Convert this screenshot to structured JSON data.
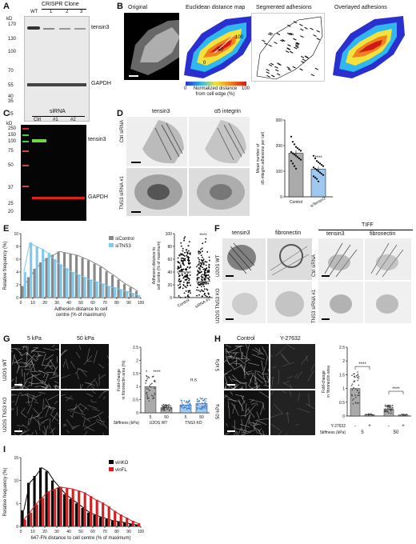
{
  "panels": {
    "A": {
      "label": "A",
      "kd": "kD",
      "header": "CRISPR Clone",
      "lanes": [
        "WT",
        "1",
        "2",
        "3"
      ],
      "markers": [
        "170",
        "130",
        "100",
        "70",
        "55",
        "40",
        "35",
        "25"
      ],
      "bands": [
        "tensin3",
        "GAPDH"
      ]
    },
    "B": {
      "label": "B",
      "titles": [
        "Original",
        "Euclidean distance map",
        "Segmented adhesions",
        "Overlayed adhesions"
      ],
      "contour_labels": [
        "100",
        "50",
        "0"
      ],
      "colorbar_ticks": [
        "0",
        "100"
      ],
      "colorbar_label": "Normalized distance\nfrom cell edge (%)"
    },
    "C": {
      "label": "C",
      "kd": "kD",
      "header": "siRNA",
      "lanes": [
        "Ctrl",
        "#1",
        "#2"
      ],
      "markers": [
        "250",
        "150",
        "100",
        "75",
        "50",
        "37",
        "25",
        "20"
      ],
      "bands": [
        "tensin3",
        "GAPDH"
      ]
    },
    "D": {
      "label": "D",
      "col_titles": [
        "tensin3",
        "α5 integrin"
      ],
      "row_labels": [
        "Ctrl siRNA",
        "TNS3 siRNA #1"
      ],
      "significance": "****"
    },
    "E": {
      "label": "E",
      "significance": "****"
    },
    "F": {
      "label": "F",
      "col_titles": [
        "tensin3",
        "fibronectin",
        "tensin3",
        "fibronectin"
      ],
      "group_title": "TIFF",
      "row_labels": [
        "U2OS WT",
        "U2OS TNS3 KO",
        "Ctrl siRNA",
        "TNS3 siRNA #1"
      ]
    },
    "G": {
      "label": "G",
      "col_titles": [
        "5 kPa",
        "50 kPa"
      ],
      "row_labels": [
        "U2OS WT",
        "U2OS TNS3 KO"
      ],
      "significance": [
        "****",
        "n.s"
      ],
      "stiffness_label": "Stiffness (kPa)"
    },
    "H": {
      "label": "H",
      "col_titles": [
        "Control",
        "Y-27632"
      ],
      "row_labels": [
        "5 kPa",
        "50 kPa"
      ],
      "significance": [
        "****",
        "****"
      ],
      "drug_label": "Y-27632",
      "stiffness_label": "Stiffness (kPa)"
    },
    "I": {
      "label": "I"
    }
  },
  "chart_data": [
    {
      "id": "D-bar",
      "type": "bar",
      "categories": [
        "Control",
        "siTensin3"
      ],
      "values": [
        170,
        108
      ],
      "errors": [
        12,
        9
      ],
      "ylabel": "Mean number of\nα5-integrin adhesions per cell",
      "ylim": [
        0,
        300
      ],
      "yticks": [
        0,
        100,
        200,
        300
      ],
      "points": [
        [
          235,
          215,
          205,
          195,
          190,
          185,
          180,
          175,
          170,
          165,
          160,
          155,
          150,
          145,
          140,
          130,
          120,
          110
        ],
        [
          160,
          150,
          140,
          135,
          130,
          125,
          120,
          115,
          110,
          105,
          100,
          95,
          90,
          85,
          80,
          75,
          70,
          60
        ]
      ],
      "significance": "****"
    },
    {
      "id": "E-hist",
      "type": "bar",
      "xlabel": "Adhesion distance to cell\ncentre (% of maximum)",
      "ylabel": "Relative frequency (%)",
      "xlim": [
        0,
        100
      ],
      "ylim": [
        0,
        10
      ],
      "xticks": [
        0,
        10,
        20,
        30,
        40,
        50,
        60,
        70,
        80,
        90,
        100
      ],
      "yticks": [
        0,
        2,
        4,
        6,
        8,
        10
      ],
      "x": [
        2.5,
        7.5,
        12.5,
        17.5,
        22.5,
        27.5,
        32.5,
        37.5,
        42.5,
        47.5,
        52.5,
        57.5,
        62.5,
        67.5,
        72.5,
        77.5,
        82.5,
        87.5,
        92.5,
        97.5
      ],
      "series": [
        {
          "name": "siControl",
          "color": "#888888",
          "values": [
            1.8,
            3.2,
            4.5,
            5.5,
            6.2,
            6.7,
            7.2,
            7.0,
            6.8,
            6.6,
            6.2,
            5.8,
            5.3,
            4.8,
            4.1,
            3.5,
            2.8,
            2.1,
            1.6,
            1.0
          ]
        },
        {
          "name": "siTNS3",
          "color": "#7fc8f0",
          "values": [
            4.0,
            8.6,
            8.0,
            7.6,
            7.0,
            6.0,
            5.2,
            4.6,
            4.0,
            3.6,
            3.2,
            2.8,
            2.5,
            2.2,
            1.8,
            1.6,
            1.3,
            1.0,
            0.7,
            0.4
          ]
        }
      ],
      "legend": "top-right"
    },
    {
      "id": "E-scatter",
      "type": "scatter",
      "categories": [
        "Control",
        "siRNA #1"
      ],
      "ylabel": "Adhesion distance to\ncell centre (% of maximum)",
      "ylim": [
        0,
        100
      ],
      "yticks": [
        0,
        20,
        40,
        60,
        80,
        100
      ],
      "medians": [
        40,
        25
      ],
      "significance": "****"
    },
    {
      "id": "G-bar",
      "type": "bar",
      "groups": [
        "U2OS WT",
        "TNS3 KO"
      ],
      "categories": [
        "5",
        "50",
        "5",
        "50"
      ],
      "values": [
        1.0,
        0.2,
        0.3,
        0.35
      ],
      "errors": [
        0.06,
        0.03,
        0.04,
        0.04
      ],
      "colors": [
        "#aaaaaa",
        "#aaaaaa",
        "#9ec8ef",
        "#9ec8ef"
      ],
      "ylabel": "Fold-change\nin fibronectin area (%)",
      "ylim": [
        0,
        2.5
      ],
      "yticks": [
        0,
        0.5,
        1,
        1.5,
        2,
        2.5
      ],
      "xlabel": "Stiffness (kPa)",
      "significance": [
        "****",
        "n.s"
      ]
    },
    {
      "id": "H-bar",
      "type": "bar",
      "categories": [
        "-",
        "+",
        "-",
        "+"
      ],
      "stiffness": [
        "5",
        "50"
      ],
      "values": [
        1.0,
        0.05,
        0.25,
        0.04
      ],
      "errors": [
        0.05,
        0.01,
        0.03,
        0.01
      ],
      "ylabel": "Fold-change\nin fibronectin area",
      "ylim": [
        0,
        2.5
      ],
      "yticks": [
        0,
        0.5,
        1,
        1.5,
        2,
        2.5
      ],
      "xlabel": "Stiffness (kPa)",
      "significance": [
        "****",
        "****"
      ]
    },
    {
      "id": "I-hist",
      "type": "bar",
      "xlabel": "647-FN distance to cell centre (% of maximum)",
      "ylabel": "Relative frequency (%)",
      "xlim": [
        0,
        100
      ],
      "ylim": [
        0,
        15
      ],
      "xticks": [
        0,
        10,
        20,
        30,
        40,
        50,
        60,
        70,
        80,
        90,
        100
      ],
      "yticks": [
        0,
        5,
        10,
        15
      ],
      "x": [
        2.5,
        7.5,
        12.5,
        17.5,
        22.5,
        27.5,
        32.5,
        37.5,
        42.5,
        47.5,
        52.5,
        57.5,
        62.5,
        67.5,
        72.5,
        77.5,
        82.5,
        87.5,
        92.5,
        97.5
      ],
      "series": [
        {
          "name": "vinKO",
          "color": "#000000",
          "values": [
            3.5,
            9.5,
            11.0,
            12.8,
            12.0,
            10.0,
            8.5,
            7.0,
            6.0,
            5.0,
            4.0,
            3.0,
            2.5,
            2.0,
            1.6,
            1.2,
            1.0,
            0.8,
            0.5,
            0.3
          ]
        },
        {
          "name": "vinFL",
          "color": "#d62020",
          "values": [
            1.5,
            3.0,
            4.8,
            6.2,
            7.5,
            8.0,
            8.6,
            8.4,
            8.2,
            7.8,
            7.4,
            6.6,
            5.8,
            5.2,
            4.4,
            3.4,
            2.6,
            1.9,
            1.2,
            0.7
          ]
        }
      ],
      "legend": "top-right"
    }
  ]
}
